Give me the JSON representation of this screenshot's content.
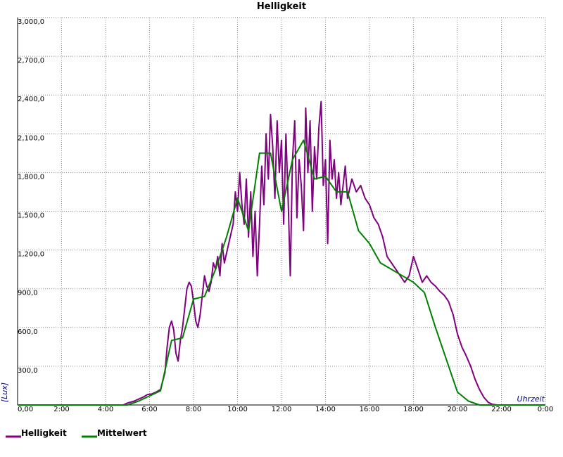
{
  "chart_data": {
    "type": "line",
    "title": "Helligkeit",
    "xlabel": "Uhrzeit",
    "ylabel": "[Lux]",
    "x_unit": "hour of day",
    "xlim": [
      0,
      24
    ],
    "ylim": [
      0,
      3000
    ],
    "x_tick_labels": [
      "0,00",
      "2:00",
      "4:00",
      "6:00",
      "8:00",
      "10:00",
      "12:00",
      "14:00",
      "16:00",
      "18:00",
      "20:00",
      "22:00",
      "0:00"
    ],
    "y_tick_labels": [
      "300,0",
      "600,0",
      "900,0",
      "1,200,0",
      "1,500,0",
      "1,800,0",
      "2,100,0",
      "2,400,0",
      "2,700,0",
      "3,000,0"
    ],
    "grid": true,
    "legend_position": "bottom-left",
    "series": [
      {
        "name": "Helligkeit",
        "color": "#800080",
        "points": [
          [
            0,
            0
          ],
          [
            4.8,
            0
          ],
          [
            5.0,
            15
          ],
          [
            5.3,
            30
          ],
          [
            5.5,
            45
          ],
          [
            5.7,
            60
          ],
          [
            5.9,
            80
          ],
          [
            6.1,
            85
          ],
          [
            6.3,
            100
          ],
          [
            6.5,
            120
          ],
          [
            6.7,
            250
          ],
          [
            6.8,
            450
          ],
          [
            6.9,
            600
          ],
          [
            7.0,
            650
          ],
          [
            7.1,
            580
          ],
          [
            7.2,
            400
          ],
          [
            7.3,
            340
          ],
          [
            7.4,
            500
          ],
          [
            7.5,
            600
          ],
          [
            7.6,
            750
          ],
          [
            7.7,
            900
          ],
          [
            7.8,
            950
          ],
          [
            7.9,
            920
          ],
          [
            8.0,
            800
          ],
          [
            8.1,
            650
          ],
          [
            8.2,
            600
          ],
          [
            8.3,
            700
          ],
          [
            8.4,
            850
          ],
          [
            8.5,
            1000
          ],
          [
            8.6,
            920
          ],
          [
            8.7,
            880
          ],
          [
            8.8,
            950
          ],
          [
            8.9,
            1100
          ],
          [
            9.0,
            1050
          ],
          [
            9.1,
            1150
          ],
          [
            9.2,
            1000
          ],
          [
            9.3,
            1250
          ],
          [
            9.4,
            1100
          ],
          [
            9.6,
            1250
          ],
          [
            9.8,
            1400
          ],
          [
            9.9,
            1650
          ],
          [
            10.0,
            1500
          ],
          [
            10.1,
            1800
          ],
          [
            10.2,
            1550
          ],
          [
            10.3,
            1400
          ],
          [
            10.4,
            1750
          ],
          [
            10.5,
            1300
          ],
          [
            10.6,
            1650
          ],
          [
            10.7,
            1150
          ],
          [
            10.8,
            1500
          ],
          [
            10.9,
            1000
          ],
          [
            11.0,
            1400
          ],
          [
            11.1,
            1850
          ],
          [
            11.2,
            1550
          ],
          [
            11.3,
            2100
          ],
          [
            11.4,
            1750
          ],
          [
            11.5,
            2250
          ],
          [
            11.6,
            2000
          ],
          [
            11.7,
            1600
          ],
          [
            11.8,
            2200
          ],
          [
            11.9,
            1800
          ],
          [
            12.0,
            2050
          ],
          [
            12.1,
            1400
          ],
          [
            12.2,
            2100
          ],
          [
            12.3,
            1600
          ],
          [
            12.4,
            1000
          ],
          [
            12.5,
            1900
          ],
          [
            12.6,
            2200
          ],
          [
            12.7,
            1450
          ],
          [
            12.8,
            1900
          ],
          [
            12.9,
            1700
          ],
          [
            13.0,
            1350
          ],
          [
            13.1,
            2300
          ],
          [
            13.2,
            1800
          ],
          [
            13.3,
            2200
          ],
          [
            13.4,
            1500
          ],
          [
            13.5,
            2000
          ],
          [
            13.6,
            1750
          ],
          [
            13.7,
            2150
          ],
          [
            13.8,
            2350
          ],
          [
            13.9,
            1700
          ],
          [
            14.0,
            1900
          ],
          [
            14.1,
            1250
          ],
          [
            14.2,
            2050
          ],
          [
            14.3,
            1750
          ],
          [
            14.4,
            1900
          ],
          [
            14.5,
            1600
          ],
          [
            14.6,
            1800
          ],
          [
            14.7,
            1550
          ],
          [
            14.8,
            1700
          ],
          [
            14.9,
            1850
          ],
          [
            15.0,
            1600
          ],
          [
            15.2,
            1750
          ],
          [
            15.4,
            1650
          ],
          [
            15.6,
            1700
          ],
          [
            15.8,
            1600
          ],
          [
            16.0,
            1550
          ],
          [
            16.2,
            1450
          ],
          [
            16.4,
            1400
          ],
          [
            16.6,
            1300
          ],
          [
            16.8,
            1150
          ],
          [
            17.0,
            1100
          ],
          [
            17.2,
            1050
          ],
          [
            17.4,
            1000
          ],
          [
            17.6,
            950
          ],
          [
            17.8,
            1000
          ],
          [
            18.0,
            1150
          ],
          [
            18.2,
            1050
          ],
          [
            18.4,
            950
          ],
          [
            18.6,
            1000
          ],
          [
            18.8,
            950
          ],
          [
            19.0,
            920
          ],
          [
            19.2,
            880
          ],
          [
            19.4,
            850
          ],
          [
            19.6,
            800
          ],
          [
            19.8,
            700
          ],
          [
            20.0,
            550
          ],
          [
            20.2,
            450
          ],
          [
            20.4,
            380
          ],
          [
            20.6,
            300
          ],
          [
            20.8,
            200
          ],
          [
            21.0,
            120
          ],
          [
            21.2,
            60
          ],
          [
            21.4,
            20
          ],
          [
            21.6,
            5
          ],
          [
            21.8,
            0
          ],
          [
            24,
            0
          ]
        ]
      },
      {
        "name": "Mittelwert",
        "color": "#008000",
        "points": [
          [
            0,
            0
          ],
          [
            5.0,
            0
          ],
          [
            5.5,
            30
          ],
          [
            6.5,
            110
          ],
          [
            7.0,
            500
          ],
          [
            7.5,
            520
          ],
          [
            8.0,
            820
          ],
          [
            8.5,
            840
          ],
          [
            9.0,
            1050
          ],
          [
            9.5,
            1300
          ],
          [
            10.0,
            1600
          ],
          [
            10.5,
            1350
          ],
          [
            11.0,
            1950
          ],
          [
            11.5,
            1950
          ],
          [
            12.0,
            1500
          ],
          [
            12.5,
            1900
          ],
          [
            13.0,
            2050
          ],
          [
            13.5,
            1750
          ],
          [
            14.0,
            1770
          ],
          [
            14.5,
            1650
          ],
          [
            15.0,
            1650
          ],
          [
            15.5,
            1350
          ],
          [
            16.0,
            1250
          ],
          [
            16.5,
            1100
          ],
          [
            17.0,
            1050
          ],
          [
            17.5,
            1000
          ],
          [
            18.0,
            950
          ],
          [
            18.5,
            870
          ],
          [
            19.0,
            600
          ],
          [
            19.5,
            350
          ],
          [
            20.0,
            100
          ],
          [
            20.5,
            30
          ],
          [
            21.0,
            0
          ],
          [
            24,
            0
          ]
        ]
      }
    ]
  }
}
